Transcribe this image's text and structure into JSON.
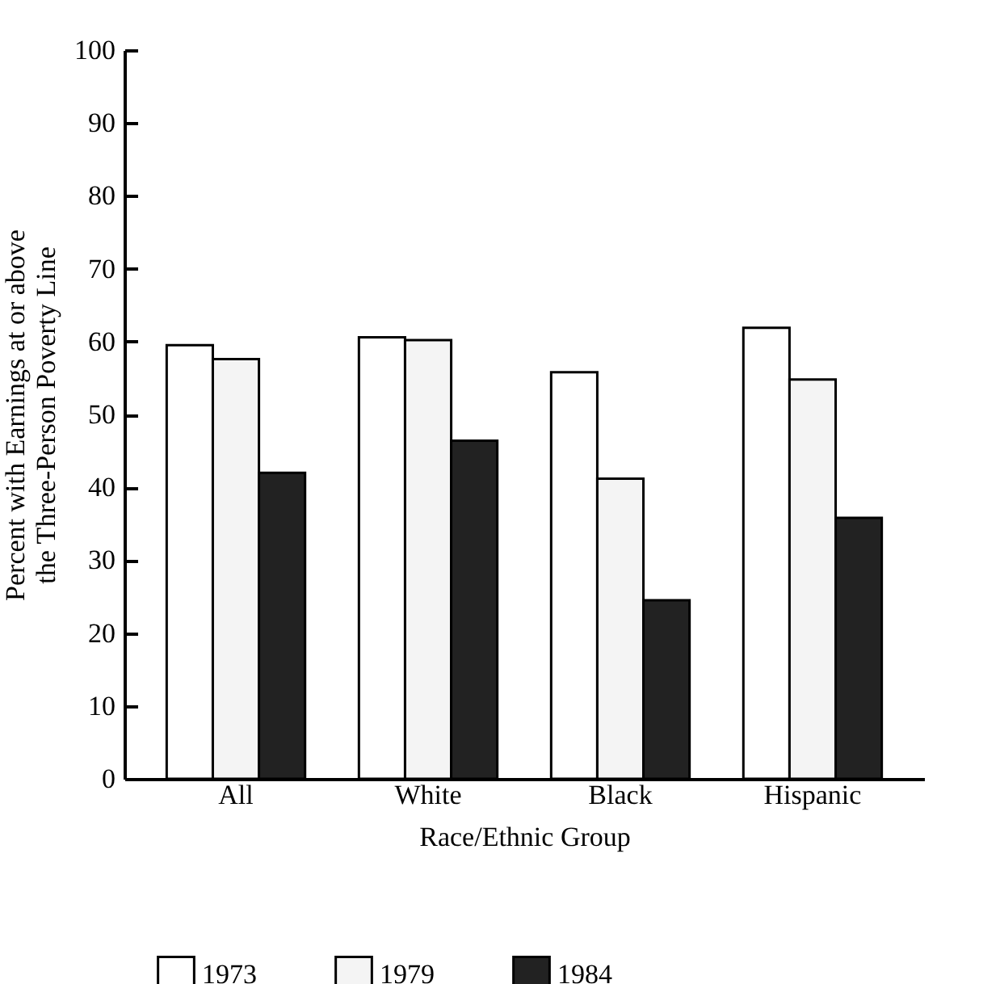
{
  "chart_data": {
    "type": "bar",
    "xlabel": "Race/Ethnic Group",
    "ylabel": "Percent with Earnings at or above the Three-Person Poverty Line",
    "categories": [
      "All",
      "White",
      "Black",
      "Hispanic"
    ],
    "series": [
      {
        "name": "1973",
        "color": "#ffffff",
        "values": [
          59.5,
          60.6,
          55.8,
          61.9
        ]
      },
      {
        "name": "1979",
        "color": "#f4f4f4",
        "values": [
          57.6,
          60.2,
          41.2,
          54.8
        ]
      },
      {
        "name": "1984",
        "color": "#222222",
        "values": [
          42.0,
          46.4,
          24.5,
          35.8
        ]
      }
    ],
    "ylim": [
      0,
      100
    ],
    "yticks": [
      0,
      10,
      20,
      30,
      40,
      50,
      60,
      70,
      80,
      90,
      100
    ],
    "grid": false,
    "legend": "bottom left"
  }
}
